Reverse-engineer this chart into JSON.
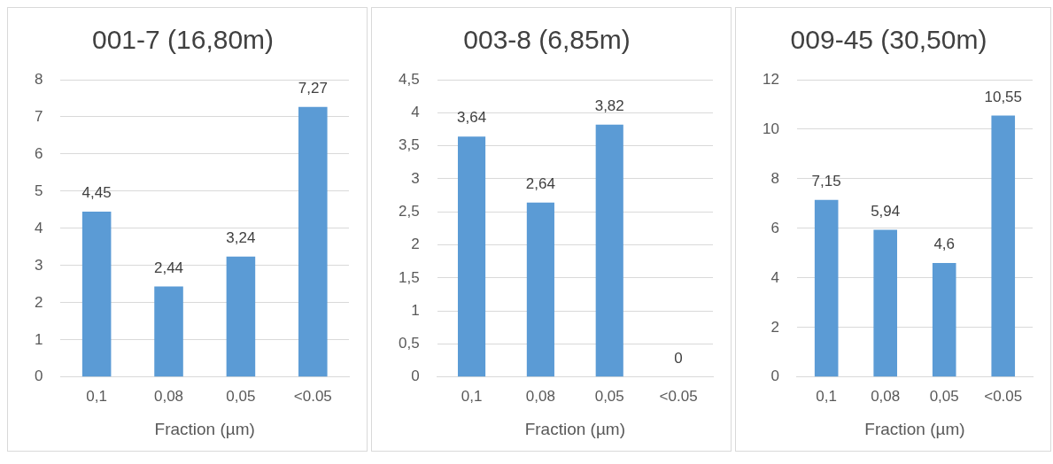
{
  "chart_data": [
    {
      "type": "bar",
      "title": "001-7 (16,80m)",
      "xlabel": "Fraction (µm)",
      "categories": [
        "0,1",
        "0,08",
        "0,05",
        "<0.05"
      ],
      "values": [
        4.45,
        2.44,
        3.24,
        7.27
      ],
      "value_labels": [
        "4,45",
        "2,44",
        "3,24",
        "7,27"
      ],
      "color": "#5b9bd5",
      "ylim": [
        0,
        8
      ],
      "yticks": [
        0,
        1,
        2,
        3,
        4,
        5,
        6,
        7,
        8
      ],
      "grid": "y",
      "legend": false
    },
    {
      "type": "bar",
      "title": "003-8 (6,85m)",
      "xlabel": "Fraction (µm)",
      "categories": [
        "0,1",
        "0,08",
        "0,05",
        "<0.05"
      ],
      "values": [
        3.64,
        2.64,
        3.82,
        0
      ],
      "value_labels": [
        "3,64",
        "2,64",
        "3,82",
        "0"
      ],
      "color": "#5b9bd5",
      "ylim": [
        0,
        4.5
      ],
      "yticks": [
        0,
        {
          "value": 0.5,
          "label": "0,5"
        },
        1,
        {
          "value": 1.5,
          "label": "1,5"
        },
        2,
        {
          "value": 2.5,
          "label": "2,5"
        },
        3,
        {
          "value": 3.5,
          "label": "3,5"
        },
        4,
        {
          "value": 4.5,
          "label": "4,5"
        }
      ],
      "grid": "y",
      "legend": false
    },
    {
      "type": "bar",
      "title": "009-45 (30,50m)",
      "xlabel": "Fraction (µm)",
      "categories": [
        "0,1",
        "0,08",
        "0,05",
        "<0.05"
      ],
      "values": [
        7.15,
        5.94,
        4.6,
        10.55
      ],
      "value_labels": [
        "7,15",
        "5,94",
        "4,6",
        "10,55"
      ],
      "color": "#5b9bd5",
      "ylim": [
        0,
        12
      ],
      "yticks": [
        0,
        2,
        4,
        6,
        8,
        10,
        12
      ],
      "grid": "y",
      "legend": false
    }
  ]
}
